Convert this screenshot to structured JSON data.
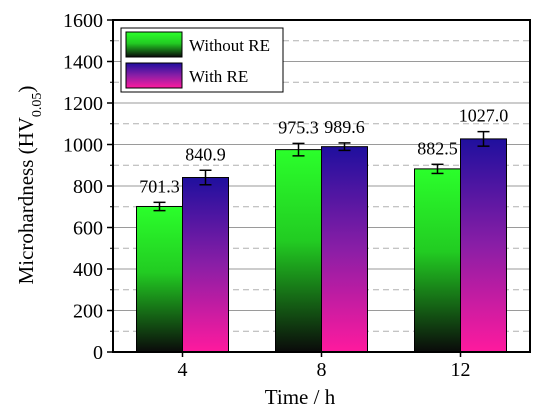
{
  "chart_data": {
    "type": "bar",
    "title": "",
    "xlabel": "Time / h",
    "ylabel": {
      "main": "Microhardness (HV",
      "subscript": "0.05",
      "close": ")"
    },
    "categories": [
      "4",
      "8",
      "12"
    ],
    "ylim": [
      0,
      1600
    ],
    "yticks": [
      0,
      200,
      400,
      600,
      800,
      1000,
      1200,
      1400,
      1600
    ],
    "grid": "dashed horizontal lines every 100",
    "legend_position": "top-left",
    "series": [
      {
        "name": "Without RE",
        "values": [
          701.3,
          975.3,
          882.5
        ],
        "value_labels": [
          "701.3",
          "975.3",
          "882.5"
        ],
        "errors": [
          20,
          30,
          22
        ],
        "gradient": [
          "#2bff2b",
          "#0a0a0a"
        ]
      },
      {
        "name": "With RE",
        "values": [
          840.9,
          989.6,
          1027.0
        ],
        "value_labels": [
          "840.9",
          "989.6",
          "1027.0"
        ],
        "errors": [
          35,
          18,
          35
        ],
        "gradient": [
          "#1f0f9e",
          "#ff1a9e"
        ]
      }
    ]
  }
}
